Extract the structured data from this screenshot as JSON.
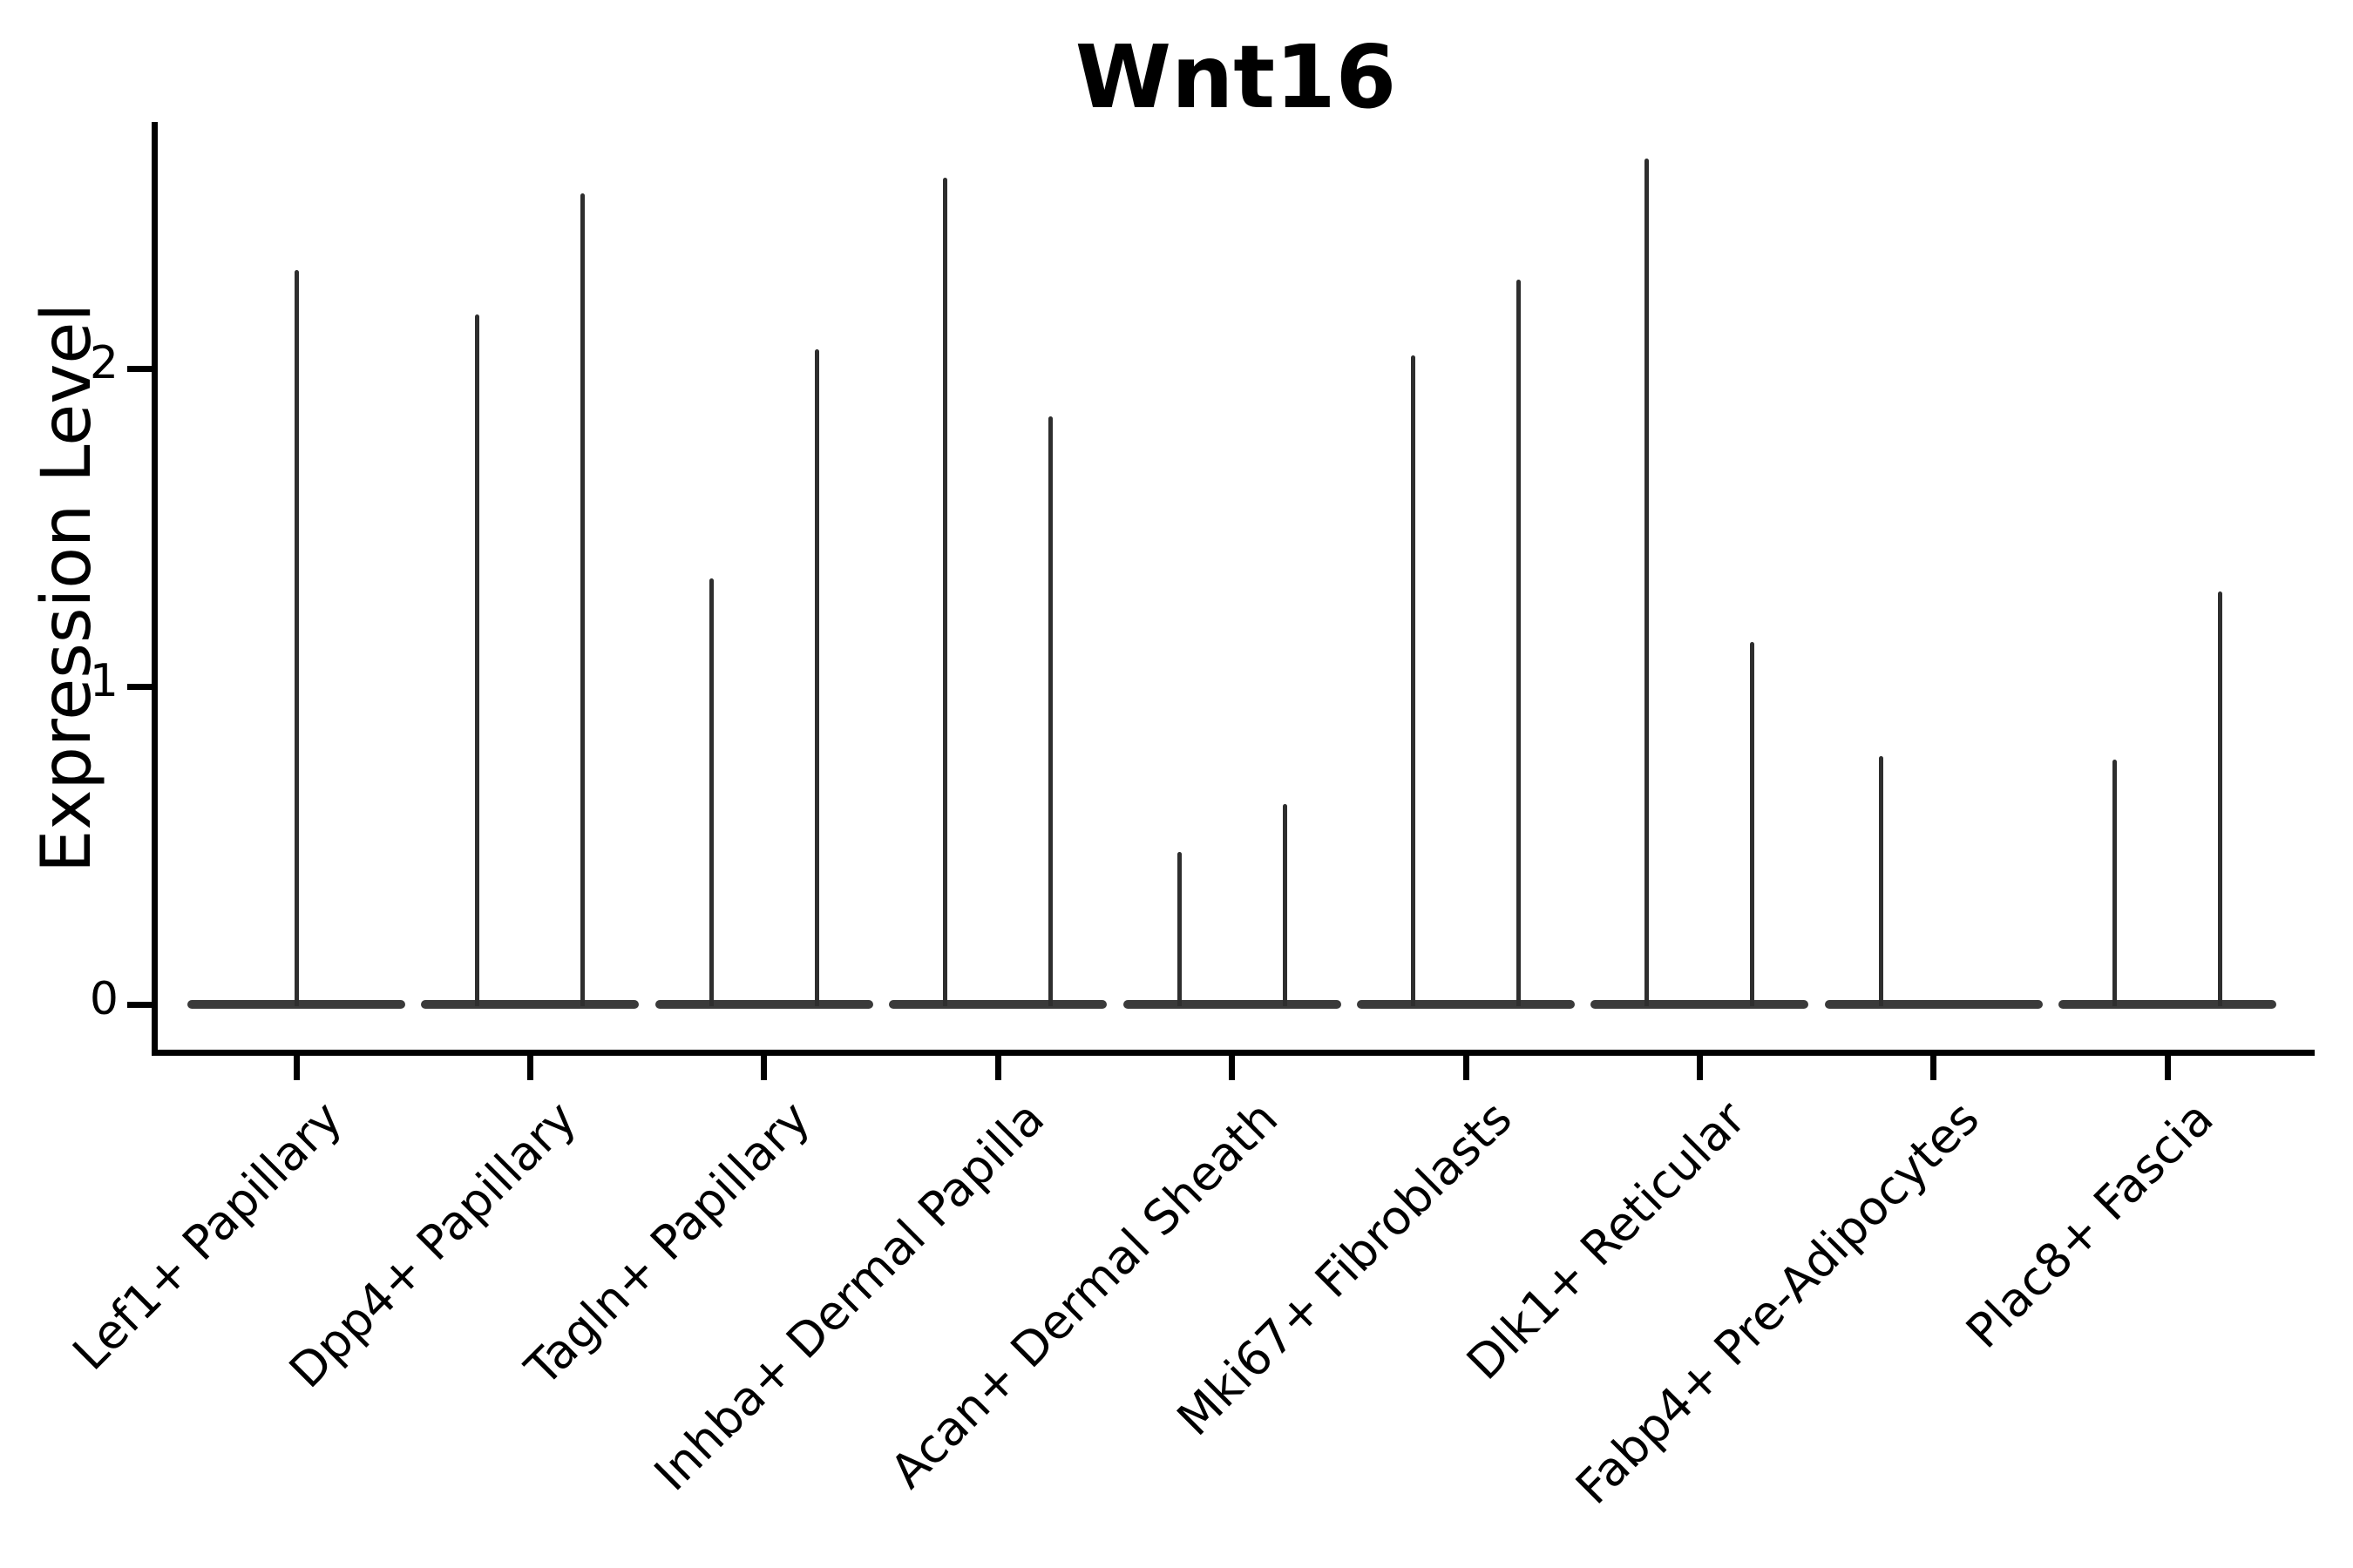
{
  "title": "Wnt16",
  "y_axis": {
    "label": "Expression Level",
    "tick_labels": [
      "0",
      "1",
      "2"
    ]
  },
  "x_axis": {
    "tick_labels": [
      "Lef1+ Papillary",
      "Dpp4+ Papillary",
      "Tagln+ Papillary",
      "Inhba+ Dermal Papilla",
      "Acan+ Dermal Sheath",
      "Mki67+ Fibroblasts",
      "Dlk1+ Reticular",
      "Fabp4+ Pre-Adipocytes",
      "Plac8+ Fascia"
    ]
  },
  "chart_data": {
    "type": "violin",
    "title": "Wnt16",
    "xlabel": "",
    "ylabel": "Expression Level",
    "yticks": [
      0,
      1,
      2
    ],
    "ylim": [
      -0.15,
      2.77
    ],
    "grid": false,
    "legend": "none",
    "description": "Violin plot of Wnt16 expression; most cells at 0 (flat wide base), thin spikes mark the maximum expression reach of sparse expressing cells. Most categories contain two adjacent violins (dodged pair); Lef1+ Papillary has a single centered violin and Fabp4+ Pre-Adipocytes has a single left-dodged violin.",
    "categories": [
      "Lef1+ Papillary",
      "Dpp4+ Papillary",
      "Tagln+ Papillary",
      "Inhba+ Dermal Papilla",
      "Acan+ Dermal Sheath",
      "Mki67+ Fibroblasts",
      "Dlk1+ Reticular",
      "Fabp4+ Pre-Adipocytes",
      "Plac8+ Fascia"
    ],
    "series": [
      {
        "category": "Lef1+ Papillary",
        "violins": [
          {
            "position": "center",
            "baseline": 0,
            "max_expression": 2.31
          }
        ]
      },
      {
        "category": "Dpp4+ Papillary",
        "violins": [
          {
            "position": "left",
            "baseline": 0,
            "max_expression": 2.17
          },
          {
            "position": "right",
            "baseline": 0,
            "max_expression": 2.55
          }
        ]
      },
      {
        "category": "Tagln+ Papillary",
        "violins": [
          {
            "position": "left",
            "baseline": 0,
            "max_expression": 1.34
          },
          {
            "position": "right",
            "baseline": 0,
            "max_expression": 2.06
          }
        ]
      },
      {
        "category": "Inhba+ Dermal Papilla",
        "violins": [
          {
            "position": "left",
            "baseline": 0,
            "max_expression": 2.6
          },
          {
            "position": "right",
            "baseline": 0,
            "max_expression": 1.85
          }
        ]
      },
      {
        "category": "Acan+ Dermal Sheath",
        "violins": [
          {
            "position": "left",
            "baseline": 0,
            "max_expression": 0.48
          },
          {
            "position": "right",
            "baseline": 0,
            "max_expression": 0.63
          }
        ]
      },
      {
        "category": "Mki67+ Fibroblasts",
        "violins": [
          {
            "position": "left",
            "baseline": 0,
            "max_expression": 2.04
          },
          {
            "position": "right",
            "baseline": 0,
            "max_expression": 2.28
          }
        ]
      },
      {
        "category": "Dlk1+ Reticular",
        "violins": [
          {
            "position": "left",
            "baseline": 0,
            "max_expression": 2.66
          },
          {
            "position": "right",
            "baseline": 0,
            "max_expression": 1.14
          }
        ]
      },
      {
        "category": "Fabp4+ Pre-Adipocytes",
        "violins": [
          {
            "position": "left",
            "baseline": 0,
            "max_expression": 0.78
          }
        ]
      },
      {
        "category": "Plac8+ Fascia",
        "violins": [
          {
            "position": "left",
            "baseline": 0,
            "max_expression": 0.77
          },
          {
            "position": "right",
            "baseline": 0,
            "max_expression": 1.3
          }
        ]
      }
    ]
  },
  "colors": {
    "background": "#ffffff",
    "axis": "#000000",
    "text": "#000000",
    "violin_stroke": "#2e2e2e",
    "violin_base": "#3a3a3a"
  }
}
